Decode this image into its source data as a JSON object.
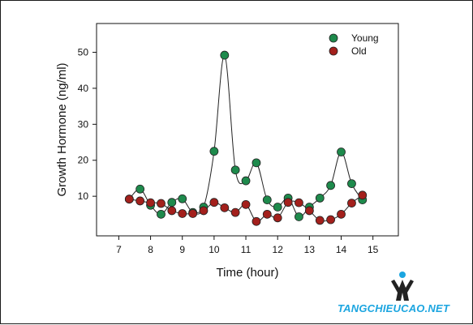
{
  "chart_data": {
    "type": "line",
    "xlabel": "Time (hour)",
    "ylabel": "Growth Hormone (ng/ml)",
    "xlim": [
      6.3,
      15.8
    ],
    "ylim": [
      -1,
      58
    ],
    "xticks": [
      7,
      8,
      9,
      10,
      11,
      12,
      13,
      14,
      15
    ],
    "yticks": [
      10,
      20,
      30,
      40,
      50
    ],
    "legend_position": "top-right",
    "series": [
      {
        "name": "Young",
        "color": "#1e8a4c",
        "x": [
          7.33,
          7.67,
          8.0,
          8.33,
          8.67,
          9.0,
          9.33,
          9.67,
          10.0,
          10.33,
          10.67,
          11.0,
          11.33,
          11.67,
          12.0,
          12.33,
          12.67,
          13.0,
          13.33,
          13.67,
          14.0,
          14.33,
          14.67
        ],
        "y": [
          9.2,
          12.0,
          7.5,
          5.0,
          8.3,
          9.3,
          5.5,
          7.0,
          22.5,
          49.2,
          17.3,
          14.3,
          19.3,
          9.0,
          7.0,
          9.5,
          4.3,
          7.0,
          9.5,
          13.0,
          22.3,
          13.5,
          9.0
        ]
      },
      {
        "name": "Old",
        "color": "#a3201c",
        "x": [
          7.33,
          7.67,
          8.0,
          8.33,
          8.67,
          9.0,
          9.33,
          9.67,
          10.0,
          10.33,
          10.67,
          11.0,
          11.33,
          11.67,
          12.0,
          12.33,
          12.67,
          13.0,
          13.33,
          13.67,
          14.0,
          14.33,
          14.67
        ],
        "y": [
          9.2,
          8.7,
          8.2,
          8.0,
          6.0,
          5.2,
          5.2,
          6.0,
          8.3,
          6.8,
          5.5,
          7.7,
          3.0,
          5.0,
          4.0,
          8.3,
          8.2,
          6.0,
          3.3,
          3.5,
          5.0,
          8.1,
          10.3
        ]
      }
    ]
  },
  "watermark": {
    "text": "TANGCHIEUCAO.NET"
  }
}
